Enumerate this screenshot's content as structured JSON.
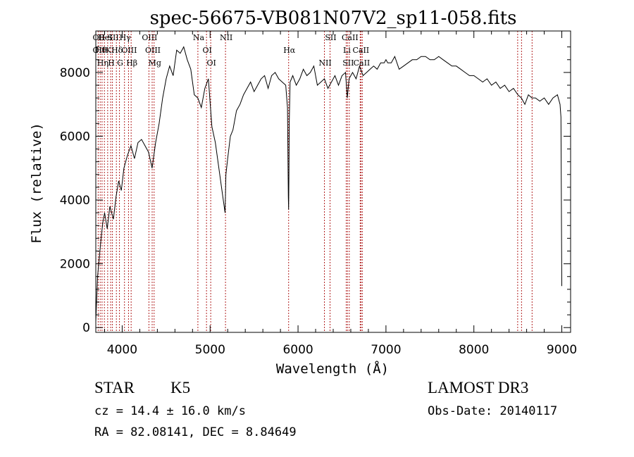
{
  "chart_data": {
    "type": "line",
    "title": "spec-56675-VB081N07V2_sp11-058.fits",
    "xlabel": "Wavelength (Å)",
    "ylabel": "Flux (relative)",
    "xlim": [
      3700,
      9100
    ],
    "ylim": [
      -150,
      9300
    ],
    "xticks": [
      4000,
      5000,
      6000,
      7000,
      8000,
      9000
    ],
    "yticks": [
      0,
      2000,
      4000,
      6000,
      8000
    ],
    "series": [
      {
        "name": "flux",
        "x": [
          3700,
          3720,
          3740,
          3760,
          3780,
          3800,
          3830,
          3860,
          3900,
          3930,
          3960,
          3990,
          4020,
          4060,
          4100,
          4140,
          4180,
          4220,
          4260,
          4300,
          4340,
          4380,
          4420,
          4460,
          4500,
          4540,
          4580,
          4620,
          4660,
          4700,
          4740,
          4780,
          4820,
          4860,
          4900,
          4940,
          4980,
          5020,
          5060,
          5100,
          5140,
          5170,
          5180,
          5200,
          5230,
          5260,
          5300,
          5340,
          5380,
          5420,
          5460,
          5500,
          5540,
          5580,
          5620,
          5660,
          5700,
          5740,
          5780,
          5820,
          5860,
          5880,
          5890,
          5893,
          5896,
          5900,
          5910,
          5940,
          5980,
          6020,
          6060,
          6100,
          6140,
          6180,
          6220,
          6260,
          6300,
          6340,
          6380,
          6420,
          6460,
          6500,
          6540,
          6560,
          6580,
          6620,
          6660,
          6700,
          6740,
          6780,
          6820,
          6860,
          6900,
          6940,
          6980,
          7000,
          7020,
          7060,
          7100,
          7150,
          7200,
          7250,
          7300,
          7350,
          7400,
          7450,
          7500,
          7550,
          7600,
          7650,
          7700,
          7750,
          7800,
          7850,
          7900,
          7950,
          8000,
          8050,
          8100,
          8150,
          8200,
          8250,
          8300,
          8350,
          8400,
          8450,
          8500,
          8540,
          8580,
          8620,
          8660,
          8700,
          8750,
          8800,
          8850,
          8900,
          8950,
          8980,
          8990,
          9000
        ],
        "values": [
          200,
          1600,
          2200,
          2800,
          3300,
          3600,
          3100,
          3800,
          3400,
          4100,
          4600,
          4300,
          5000,
          5400,
          5700,
          5300,
          5800,
          5900,
          5700,
          5500,
          5000,
          5800,
          6400,
          7200,
          7800,
          8200,
          7900,
          8700,
          8600,
          8800,
          8400,
          8100,
          7300,
          7200,
          6900,
          7500,
          7800,
          6300,
          5800,
          5000,
          4200,
          3600,
          4800,
          5300,
          6000,
          6200,
          6800,
          7000,
          7300,
          7500,
          7700,
          7400,
          7600,
          7800,
          7900,
          7500,
          7900,
          8000,
          7800,
          7700,
          7600,
          6900,
          4100,
          3700,
          4600,
          6400,
          7700,
          7900,
          7600,
          7800,
          8100,
          7900,
          8000,
          8200,
          7600,
          7700,
          7800,
          7500,
          7700,
          7900,
          7600,
          7900,
          8000,
          7200,
          7800,
          8000,
          7800,
          8200,
          7900,
          8000,
          8100,
          8200,
          8100,
          8300,
          8300,
          8400,
          8300,
          8300,
          8500,
          8100,
          8200,
          8300,
          8400,
          8400,
          8500,
          8500,
          8400,
          8400,
          8500,
          8400,
          8300,
          8200,
          8200,
          8100,
          8000,
          7900,
          7900,
          7800,
          7700,
          7800,
          7600,
          7700,
          7500,
          7600,
          7400,
          7500,
          7300,
          7200,
          7000,
          7300,
          7200,
          7200,
          7100,
          7200,
          7000,
          7200,
          7300,
          7000,
          6600,
          1300
        ]
      }
    ],
    "line_markers": [
      {
        "x": 3727,
        "labels": [
          "OII",
          "OII"
        ]
      },
      {
        "x": 3750,
        "labels": [
          "Hθ"
        ]
      },
      {
        "x": 3771,
        "labels": [
          "Hη"
        ]
      },
      {
        "x": 3798,
        "labels": [
          "HeI"
        ]
      },
      {
        "x": 3835,
        "labels": [
          "K"
        ]
      },
      {
        "x": 3869,
        "labels": [
          "H"
        ]
      },
      {
        "x": 3889,
        "labels": [
          "SII"
        ]
      },
      {
        "x": 3934,
        "labels": [
          "Hδ"
        ]
      },
      {
        "x": 3969,
        "labels": [
          "G"
        ]
      },
      {
        "x": 4026,
        "labels": [
          "Hγ"
        ]
      },
      {
        "x": 4072,
        "labels": [
          "OIII"
        ]
      },
      {
        "x": 4102,
        "labels": [
          "Hβ"
        ]
      },
      {
        "x": 4304,
        "labels": [
          "OIII"
        ]
      },
      {
        "x": 4341,
        "labels": [
          "OIII"
        ]
      },
      {
        "x": 4363,
        "labels": [
          "Mg"
        ]
      },
      {
        "x": 4861,
        "labels": [
          "Na"
        ]
      },
      {
        "x": 4959,
        "labels": [
          "OI"
        ]
      },
      {
        "x": 5007,
        "labels": [
          "OI"
        ]
      },
      {
        "x": 5175,
        "labels": [
          "NII"
        ]
      },
      {
        "x": 5893,
        "labels": [
          "Hα"
        ]
      },
      {
        "x": 6300,
        "labels": [
          "NII"
        ]
      },
      {
        "x": 6364,
        "labels": [
          "SII"
        ]
      },
      {
        "x": 6548,
        "labels": [
          "Li"
        ]
      },
      {
        "x": 6563,
        "labels": [
          "SII"
        ]
      },
      {
        "x": 6583,
        "labels": [
          "CaII"
        ]
      },
      {
        "x": 6707,
        "labels": [
          "CaII"
        ]
      },
      {
        "x": 6716,
        "labels": [
          "CaII"
        ]
      },
      {
        "x": 6731,
        "labels": []
      },
      {
        "x": 8498,
        "labels": []
      },
      {
        "x": 8542,
        "labels": []
      },
      {
        "x": 8662,
        "labels": []
      }
    ]
  },
  "info": {
    "class": "STAR",
    "subclass": "K5",
    "survey": "LAMOST DR3",
    "cz": "cz = 14.4 ± 16.0 km/s",
    "obs_date": "Obs-Date: 20140117",
    "coords": "RA =  82.08141, DEC =   8.84649"
  },
  "colors": {
    "line": "#000000",
    "marker": "#b22222",
    "background": "#ffffff"
  }
}
